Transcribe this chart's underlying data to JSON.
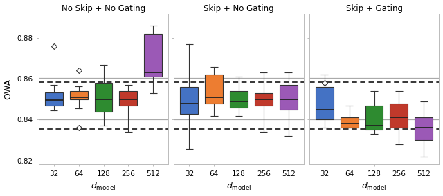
{
  "titles": [
    "No Skip + No Gating",
    "Skip + No Gating",
    "Skip + Gating"
  ],
  "xlabel": "$d_\\mathrm{model}$",
  "ylabel": "OWA",
  "categories": [
    "32",
    "64",
    "128",
    "256",
    "512"
  ],
  "colors": [
    "#4472C4",
    "#ED7D31",
    "#2E8B30",
    "#C0392B",
    "#9B59B6"
  ],
  "ylim": [
    0.818,
    0.892
  ],
  "yticks": [
    0.82,
    0.84,
    0.86,
    0.88
  ],
  "hline_gray_solid": [
    0.8605,
    0.84
  ],
  "hline_black_dashed": [
    0.8585,
    0.8355
  ],
  "panels": {
    "no_skip_no_gating": {
      "boxes": [
        {
          "whislo": 0.8445,
          "q1": 0.847,
          "med": 0.8495,
          "q3": 0.8535,
          "whishi": 0.857,
          "fliers": [
            0.876
          ]
        },
        {
          "whislo": 0.8455,
          "q1": 0.85,
          "med": 0.851,
          "q3": 0.854,
          "whishi": 0.8565,
          "fliers": [
            0.864,
            0.836
          ]
        },
        {
          "whislo": 0.837,
          "q1": 0.844,
          "med": 0.85,
          "q3": 0.858,
          "whishi": 0.867,
          "fliers": []
        },
        {
          "whislo": 0.834,
          "q1": 0.847,
          "med": 0.85,
          "q3": 0.854,
          "whishi": 0.857,
          "fliers": []
        },
        {
          "whislo": 0.853,
          "q1": 0.861,
          "med": 0.863,
          "q3": 0.882,
          "whishi": 0.886,
          "fliers": []
        }
      ]
    },
    "skip_no_gating": {
      "boxes": [
        {
          "whislo": 0.8255,
          "q1": 0.843,
          "med": 0.848,
          "q3": 0.856,
          "whishi": 0.877,
          "fliers": []
        },
        {
          "whislo": 0.842,
          "q1": 0.848,
          "med": 0.851,
          "q3": 0.862,
          "whishi": 0.866,
          "fliers": []
        },
        {
          "whislo": 0.842,
          "q1": 0.846,
          "med": 0.849,
          "q3": 0.854,
          "whishi": 0.861,
          "fliers": []
        },
        {
          "whislo": 0.834,
          "q1": 0.847,
          "med": 0.85,
          "q3": 0.853,
          "whishi": 0.863,
          "fliers": []
        },
        {
          "whislo": 0.832,
          "q1": 0.845,
          "med": 0.85,
          "q3": 0.857,
          "whishi": 0.863,
          "fliers": []
        }
      ]
    },
    "skip_gating": {
      "boxes": [
        {
          "whislo": 0.836,
          "q1": 0.84,
          "med": 0.845,
          "q3": 0.856,
          "whishi": 0.862,
          "fliers": [
            0.858
          ]
        },
        {
          "whislo": 0.836,
          "q1": 0.836,
          "med": 0.838,
          "q3": 0.841,
          "whishi": 0.847,
          "fliers": []
        },
        {
          "whislo": 0.833,
          "q1": 0.835,
          "med": 0.837,
          "q3": 0.847,
          "whishi": 0.854,
          "fliers": []
        },
        {
          "whislo": 0.828,
          "q1": 0.836,
          "med": 0.841,
          "q3": 0.848,
          "whishi": 0.854,
          "fliers": []
        },
        {
          "whislo": 0.822,
          "q1": 0.83,
          "med": 0.836,
          "q3": 0.841,
          "whishi": 0.849,
          "fliers": []
        }
      ]
    }
  },
  "background_color": "#ffffff",
  "fig_background": "#ffffff"
}
